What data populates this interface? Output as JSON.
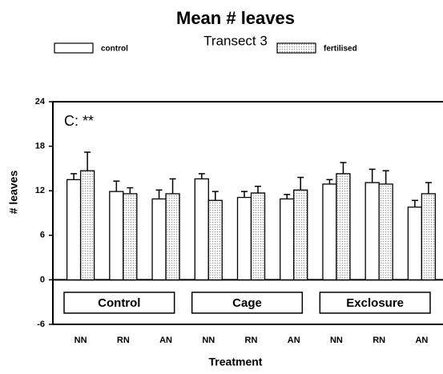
{
  "chart_data": {
    "type": "bar",
    "title": "Mean # leaves",
    "subtitle": "Transect 3",
    "annotation": "C: **",
    "xlabel": "Treatment",
    "ylabel": "# leaves",
    "categories": [
      "NN",
      "RN",
      "AN",
      "NN",
      "RN",
      "AN",
      "NN",
      "RN",
      "AN"
    ],
    "groups": [
      "Control",
      "Cage",
      "Exclosure"
    ],
    "series": [
      {
        "name": "control",
        "color": "#ffffff",
        "pattern": "none",
        "values": [
          13.5,
          11.9,
          10.9,
          13.6,
          11.1,
          10.9,
          12.9,
          13.1,
          9.8
        ],
        "errors": [
          0.8,
          1.4,
          1.2,
          0.7,
          0.8,
          0.6,
          0.6,
          1.8,
          0.9
        ]
      },
      {
        "name": "fertilised",
        "color": "#9a9a9a",
        "pattern": "dots",
        "values": [
          14.7,
          11.6,
          11.6,
          10.7,
          11.7,
          12.1,
          14.3,
          12.9,
          11.6
        ],
        "errors": [
          2.5,
          0.8,
          2.0,
          1.2,
          0.9,
          1.7,
          1.5,
          1.8,
          1.5
        ]
      }
    ],
    "ylim": [
      -6,
      24
    ],
    "yticks": [
      -6,
      0,
      6,
      12,
      18,
      24
    ]
  }
}
